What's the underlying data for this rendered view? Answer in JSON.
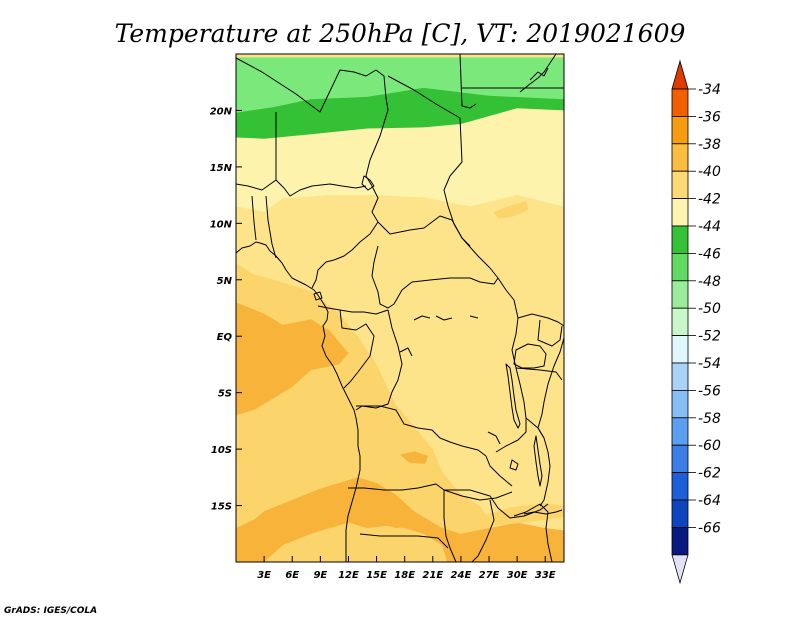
{
  "title": "Temperature at 250hPa [C], VT: 2019021609",
  "credit": "GrADS: IGES/COLA",
  "map": {
    "lon_range": [
      0,
      35
    ],
    "lat_range": [
      -20,
      25
    ],
    "lon_ticks": [
      {
        "value": 3,
        "label": "3E"
      },
      {
        "value": 6,
        "label": "6E"
      },
      {
        "value": 9,
        "label": "9E"
      },
      {
        "value": 12,
        "label": "12E"
      },
      {
        "value": 15,
        "label": "15E"
      },
      {
        "value": 18,
        "label": "18E"
      },
      {
        "value": 21,
        "label": "21E"
      },
      {
        "value": 24,
        "label": "24E"
      },
      {
        "value": 27,
        "label": "27E"
      },
      {
        "value": 30,
        "label": "30E"
      },
      {
        "value": 33,
        "label": "33E"
      }
    ],
    "lat_ticks": [
      {
        "value": 20,
        "label": "20N"
      },
      {
        "value": 15,
        "label": "15N"
      },
      {
        "value": 10,
        "label": "10N"
      },
      {
        "value": 5,
        "label": "5N"
      },
      {
        "value": 0,
        "label": "EQ"
      },
      {
        "value": -5,
        "label": "5S"
      },
      {
        "value": -10,
        "label": "10S"
      },
      {
        "value": -15,
        "label": "15S"
      }
    ]
  },
  "colorbar": {
    "labels": [
      "-34",
      "-36",
      "-38",
      "-40",
      "-42",
      "-44",
      "-46",
      "-48",
      "-50",
      "-52",
      "-54",
      "-56",
      "-58",
      "-60",
      "-62",
      "-64",
      "-66"
    ],
    "colors": [
      "#e03a00",
      "#f06000",
      "#f59c10",
      "#f9bd40",
      "#fdda76",
      "#fdf5b0",
      "#36c236",
      "#62d962",
      "#99ec99",
      "#c8f8c8",
      "#e0f9ff",
      "#a9d3f7",
      "#86bff5",
      "#5a9ff0",
      "#3a7ee6",
      "#1d5ed9",
      "#0b46bf",
      "#081a80",
      "#e3e1f8"
    ]
  },
  "fields": {
    "background_color": "#fde38a",
    "zones": [
      {
        "level": "-46",
        "color": "#7be87b",
        "points": [
          [
            0,
            24.7
          ],
          [
            35,
            24.7
          ],
          [
            35,
            20.5
          ],
          [
            28,
            21
          ],
          [
            22,
            20.5
          ],
          [
            15,
            20.8
          ],
          [
            8,
            20.5
          ],
          [
            4,
            19.8
          ],
          [
            0,
            19.5
          ]
        ]
      },
      {
        "level": "-44",
        "color": "#35c135",
        "points": [
          [
            0,
            19.8
          ],
          [
            4,
            20.3
          ],
          [
            8,
            21
          ],
          [
            14,
            21.2
          ],
          [
            20,
            22
          ],
          [
            27,
            21.3
          ],
          [
            35,
            21
          ],
          [
            35,
            19.5
          ],
          [
            30,
            20
          ],
          [
            24,
            18.5
          ],
          [
            20,
            18.2
          ],
          [
            14,
            18.2
          ],
          [
            8,
            17.6
          ],
          [
            3,
            17.3
          ],
          [
            0,
            17.4
          ]
        ]
      },
      {
        "level": "-42",
        "color": "#fdf3ad",
        "points": [
          [
            0,
            17.6
          ],
          [
            3,
            17.5
          ],
          [
            8,
            17.9
          ],
          [
            14,
            18.4
          ],
          [
            20,
            18.5
          ],
          [
            24,
            18.8
          ],
          [
            30,
            20.2
          ],
          [
            35,
            20
          ],
          [
            35,
            11.5
          ],
          [
            30,
            12.5
          ],
          [
            25,
            11.5
          ],
          [
            20,
            12.3
          ],
          [
            15,
            12.5
          ],
          [
            10,
            12.5
          ],
          [
            5,
            12.2
          ],
          [
            3,
            11
          ],
          [
            0,
            11.5
          ]
        ]
      },
      {
        "level": "-40",
        "color": "#fbd46c",
        "points": [
          [
            0,
            6.5
          ],
          [
            1.8,
            5.5
          ],
          [
            4,
            5
          ],
          [
            8,
            4
          ],
          [
            11,
            2
          ],
          [
            13,
            0
          ],
          [
            15,
            -2.5
          ],
          [
            17,
            -6
          ],
          [
            19,
            -8
          ],
          [
            21,
            -10
          ],
          [
            22,
            -12
          ],
          [
            24,
            -14
          ],
          [
            26,
            -15
          ],
          [
            28,
            -17.5
          ],
          [
            30,
            -18.5
          ],
          [
            30,
            -20
          ],
          [
            0,
            -20
          ]
        ]
      },
      {
        "level": "-38",
        "color": "#f8b43a",
        "points": [
          [
            0,
            3
          ],
          [
            3,
            2
          ],
          [
            5,
            1
          ],
          [
            8,
            1.5
          ],
          [
            10,
            0.5
          ],
          [
            12,
            -1.5
          ],
          [
            11,
            -2.5
          ],
          [
            8,
            -3
          ],
          [
            6,
            -4.5
          ],
          [
            4,
            -5.5
          ],
          [
            2,
            -6.5
          ],
          [
            0,
            -7
          ]
        ]
      },
      {
        "level": "-38",
        "color": "#f8b43a",
        "points": [
          [
            3,
            -15.5
          ],
          [
            6,
            -14.5
          ],
          [
            9,
            -13.5
          ],
          [
            11,
            -13
          ],
          [
            13,
            -12.5
          ],
          [
            15,
            -13
          ],
          [
            17,
            -14
          ],
          [
            19,
            -15.5
          ],
          [
            21,
            -16.5
          ],
          [
            22,
            -17
          ],
          [
            24,
            -17.5
          ],
          [
            27,
            -17
          ],
          [
            30,
            -16.5
          ],
          [
            33,
            -17
          ],
          [
            35,
            -17.2
          ],
          [
            35,
            -20
          ],
          [
            0,
            -20
          ],
          [
            0,
            -17
          ],
          [
            2,
            -16.2
          ]
        ]
      },
      {
        "level": "-40",
        "color": "#fbd46c",
        "points": [
          [
            3,
            -20
          ],
          [
            5,
            -18.5
          ],
          [
            8,
            -17.5
          ],
          [
            10,
            -17
          ],
          [
            12,
            -16.5
          ],
          [
            14,
            -17
          ],
          [
            16,
            -16.8
          ],
          [
            18,
            -17
          ],
          [
            20,
            -17.5
          ],
          [
            22,
            -18.5
          ],
          [
            22.5,
            -20
          ]
        ]
      },
      {
        "level": "-38",
        "color": "#f8b43a",
        "points": [
          [
            16,
            -15.8
          ],
          [
            17.5,
            -15.5
          ],
          [
            19,
            -16
          ],
          [
            19,
            -16.8
          ],
          [
            17,
            -17
          ],
          [
            15.8,
            -16.6
          ]
        ]
      },
      {
        "level": "-38",
        "color": "#f8b43a",
        "points": [
          [
            17.5,
            -10.5
          ],
          [
            19,
            -10.2
          ],
          [
            20.5,
            -10.6
          ],
          [
            20.2,
            -11.3
          ],
          [
            18.5,
            -11.2
          ]
        ]
      },
      {
        "level": "-40",
        "color": "#fbd46c",
        "points": [
          [
            26,
            -16
          ],
          [
            29,
            -15.2
          ],
          [
            33,
            -14.8
          ],
          [
            35,
            -15
          ],
          [
            35,
            -16
          ],
          [
            31,
            -16.5
          ],
          [
            27,
            -16.8
          ]
        ]
      },
      {
        "level": "-40",
        "color": "#fbd46c",
        "points": [
          [
            27.5,
            11
          ],
          [
            29,
            11.5
          ],
          [
            31,
            12
          ],
          [
            31.2,
            11.2
          ],
          [
            29.5,
            10.6
          ],
          [
            28,
            10.4
          ]
        ]
      }
    ]
  }
}
